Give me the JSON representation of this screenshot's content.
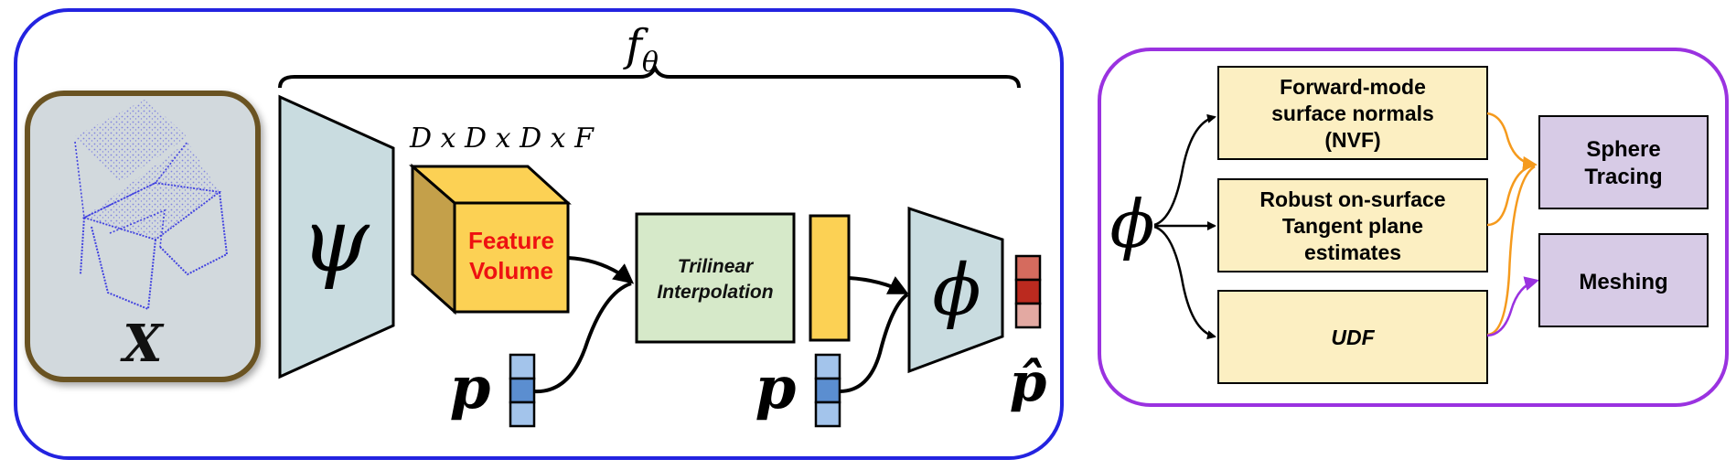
{
  "left_panel": {
    "f_label": "f",
    "f_subscript": "θ",
    "input_label": "X",
    "encoder_symbol": "ψ",
    "volume_dims": "D x D x D x F",
    "feature_volume_line1": "Feature",
    "feature_volume_line2": "Volume",
    "trilinear_line1": "Trilinear",
    "trilinear_line2": "Interpolation",
    "query_point_label_1": "p",
    "query_point_label_2": "p",
    "decoder_symbol": "ϕ",
    "output_label": "p̂"
  },
  "right_panel": {
    "phi_symbol": "ϕ",
    "box_normals_line1": "Forward-mode",
    "box_normals_line2": "surface normals",
    "box_normals_line3": "(NVF)",
    "box_tangent_line1": "Robust on-surface",
    "box_tangent_line2": "Tangent plane",
    "box_tangent_line3": "estimates",
    "box_udf": "UDF",
    "box_sphere_line1": "Sphere",
    "box_sphere_line2": "Tracing",
    "box_meshing": "Meshing"
  },
  "colors": {
    "left_border": "#2323e0",
    "right_border": "#9a32e0",
    "input_border": "#6b5320",
    "input_fill": "#d2d9dd",
    "trapezoid_fill": "#c9dce0",
    "cube_front": "#fcd154",
    "cube_side": "#c4a04a",
    "feature_text": "#ee1111",
    "trilinear_fill": "#d6e9c9",
    "latent_bar": "#fcd154",
    "query_fill_light": "#a3c4eb",
    "query_fill_dark": "#5b8ed0",
    "output_top": "#d56b5e",
    "output_mid": "#bb2a1f",
    "output_bottom": "#e3a9a2",
    "yellow_box": "#fcefc2",
    "purple_box": "#d7cbe6",
    "orange_arrow": "#f59a1d",
    "purple_arrow": "#9a32e0"
  }
}
